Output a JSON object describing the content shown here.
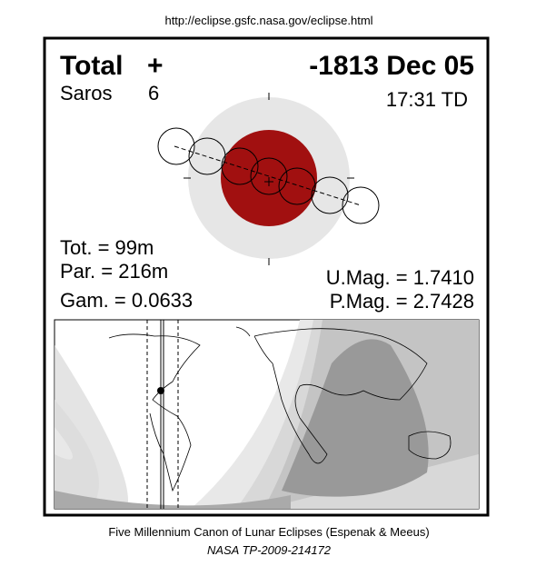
{
  "header": {
    "url": "http://eclipse.gsfc.nasa.gov/eclipse.html"
  },
  "eclipse": {
    "type": "Total",
    "type_symbol": "+",
    "date": "-1813 Dec 05",
    "saros_label": "Saros",
    "saros_number": "6",
    "time": "17:31 TD",
    "total_duration": "Tot. =  99m",
    "partial_duration": "Par. = 216m",
    "gamma": "Gam. = 0.0633",
    "umbral_magnitude": "U.Mag. = 1.7410",
    "penumbral_magnitude": "P.Mag. = 2.7428"
  },
  "footer": {
    "line1": "Five Millennium Canon of Lunar Eclipses (Espenak & Meeus)",
    "line2": "NASA TP-2009-214172"
  }
}
